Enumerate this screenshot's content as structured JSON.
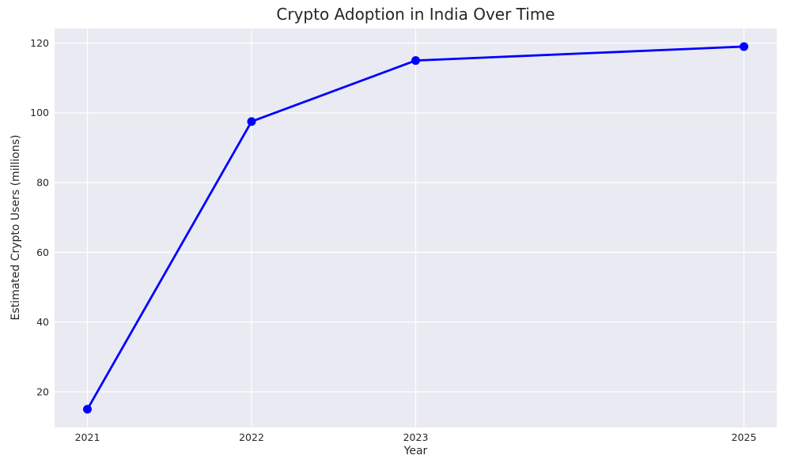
{
  "chart_data": {
    "type": "line",
    "title": "Crypto Adoption in India Over Time",
    "xlabel": "Year",
    "ylabel": "Estimated Crypto Users (millions)",
    "x": [
      2021,
      2022,
      2023,
      2025
    ],
    "values": [
      15,
      97.5,
      115,
      119
    ],
    "xticks": [
      2021,
      2022,
      2023,
      2025
    ],
    "yticks": [
      20,
      40,
      60,
      80,
      100,
      120
    ],
    "xlim": [
      2020.8,
      2025.2
    ],
    "ylim": [
      9.8,
      124.2
    ],
    "grid": true,
    "legend": "none",
    "marker": "circle",
    "line_color": "#0000ff",
    "marker_color": "#0000ff",
    "plot_bg_color": "#eaeaf2",
    "figure_bg_color": "#ffffff",
    "grid_color": "#ffffff",
    "text_color": "#262626"
  }
}
